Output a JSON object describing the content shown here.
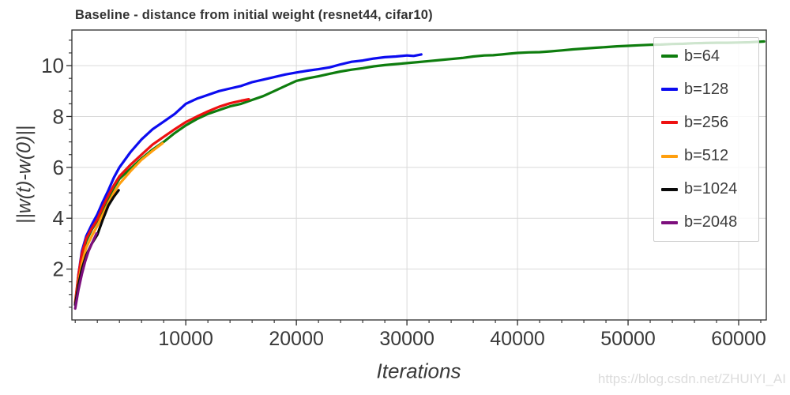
{
  "watermark": {
    "text": "https://blog.csdn.net/ZHUIYI_AI"
  },
  "style": {
    "grid_color": "#d9d9d9",
    "spine_color": "#2b2b2b",
    "tick_color": "#2b2b2b",
    "tick_label_color": "#3a3a3a",
    "title_color": "#333333",
    "legend_border_color": "#cccccc"
  },
  "chart_data": {
    "type": "line",
    "title": "Baseline - distance from initial weight (resnet44, cifar10)",
    "xlabel": "Iterations",
    "ylabel": "||w(t)-w(0)||",
    "xlim": [
      -300,
      62500
    ],
    "ylim": [
      0,
      11.4
    ],
    "grid": true,
    "legend_position": "upper right",
    "x_ticks_major": [
      10000,
      20000,
      30000,
      40000,
      50000,
      60000
    ],
    "x_tick_labels": [
      "10000",
      "20000",
      "30000",
      "40000",
      "50000",
      "60000"
    ],
    "x_minor_step": 2000,
    "y_ticks_major": [
      2,
      4,
      6,
      8,
      10
    ],
    "y_tick_labels": [
      "2",
      "4",
      "6",
      "8",
      "10"
    ],
    "y_minor_step": 0.5,
    "series": [
      {
        "name": "b=64",
        "color": "#0e7d0e",
        "points": [
          [
            0,
            0.6
          ],
          [
            300,
            1.7
          ],
          [
            600,
            2.5
          ],
          [
            1000,
            3.1
          ],
          [
            1500,
            3.55
          ],
          [
            2000,
            3.9
          ],
          [
            2500,
            4.35
          ],
          [
            3000,
            4.8
          ],
          [
            3500,
            5.2
          ],
          [
            4000,
            5.55
          ],
          [
            5000,
            5.95
          ],
          [
            6000,
            6.35
          ],
          [
            7000,
            6.7
          ],
          [
            8000,
            7.0
          ],
          [
            9000,
            7.35
          ],
          [
            10000,
            7.65
          ],
          [
            11000,
            7.9
          ],
          [
            12000,
            8.1
          ],
          [
            13000,
            8.25
          ],
          [
            14000,
            8.4
          ],
          [
            15000,
            8.5
          ],
          [
            16000,
            8.65
          ],
          [
            17000,
            8.8
          ],
          [
            18000,
            9.0
          ],
          [
            19000,
            9.2
          ],
          [
            20000,
            9.4
          ],
          [
            21000,
            9.5
          ],
          [
            22000,
            9.58
          ],
          [
            23000,
            9.68
          ],
          [
            24000,
            9.77
          ],
          [
            25000,
            9.84
          ],
          [
            26000,
            9.9
          ],
          [
            27000,
            9.97
          ],
          [
            28000,
            10.02
          ],
          [
            29000,
            10.06
          ],
          [
            30000,
            10.1
          ],
          [
            31000,
            10.14
          ],
          [
            32000,
            10.18
          ],
          [
            33000,
            10.22
          ],
          [
            34000,
            10.26
          ],
          [
            35000,
            10.3
          ],
          [
            36000,
            10.36
          ],
          [
            37000,
            10.4
          ],
          [
            37800,
            10.41
          ],
          [
            38600,
            10.44
          ],
          [
            39300,
            10.47
          ],
          [
            40000,
            10.5
          ],
          [
            41000,
            10.52
          ],
          [
            42000,
            10.53
          ],
          [
            43000,
            10.56
          ],
          [
            44000,
            10.6
          ],
          [
            45000,
            10.64
          ],
          [
            46000,
            10.67
          ],
          [
            47000,
            10.7
          ],
          [
            48000,
            10.73
          ],
          [
            49000,
            10.76
          ],
          [
            50000,
            10.78
          ],
          [
            51000,
            10.8
          ],
          [
            52000,
            10.82
          ],
          [
            53000,
            10.83
          ],
          [
            54000,
            10.85
          ],
          [
            55000,
            10.86
          ],
          [
            56000,
            10.88
          ],
          [
            57000,
            10.89
          ],
          [
            58000,
            10.9
          ],
          [
            59000,
            10.9
          ],
          [
            60000,
            10.91
          ],
          [
            61000,
            10.92
          ],
          [
            62300,
            10.95
          ]
        ]
      },
      {
        "name": "b=128",
        "color": "#0c0cf0",
        "points": [
          [
            0,
            0.6
          ],
          [
            300,
            1.8
          ],
          [
            600,
            2.7
          ],
          [
            1000,
            3.3
          ],
          [
            1500,
            3.75
          ],
          [
            2000,
            4.15
          ],
          [
            2500,
            4.65
          ],
          [
            3000,
            5.1
          ],
          [
            3500,
            5.6
          ],
          [
            4000,
            6.0
          ],
          [
            5000,
            6.6
          ],
          [
            6000,
            7.1
          ],
          [
            7000,
            7.5
          ],
          [
            8000,
            7.8
          ],
          [
            9000,
            8.1
          ],
          [
            10000,
            8.5
          ],
          [
            11000,
            8.7
          ],
          [
            12000,
            8.85
          ],
          [
            13000,
            9.0
          ],
          [
            14000,
            9.1
          ],
          [
            15000,
            9.2
          ],
          [
            16000,
            9.35
          ],
          [
            17000,
            9.45
          ],
          [
            18000,
            9.55
          ],
          [
            19000,
            9.65
          ],
          [
            20000,
            9.73
          ],
          [
            21000,
            9.8
          ],
          [
            22000,
            9.86
          ],
          [
            23000,
            9.93
          ],
          [
            24000,
            10.05
          ],
          [
            25000,
            10.15
          ],
          [
            26000,
            10.2
          ],
          [
            27000,
            10.28
          ],
          [
            28000,
            10.33
          ],
          [
            29000,
            10.36
          ],
          [
            30000,
            10.4
          ],
          [
            30600,
            10.38
          ],
          [
            31300,
            10.44
          ]
        ]
      },
      {
        "name": "b=256",
        "color": "#ee1111",
        "points": [
          [
            0,
            0.7
          ],
          [
            300,
            1.8
          ],
          [
            600,
            2.6
          ],
          [
            1000,
            3.2
          ],
          [
            1500,
            3.6
          ],
          [
            2000,
            3.95
          ],
          [
            2500,
            4.45
          ],
          [
            3000,
            4.9
          ],
          [
            3500,
            5.3
          ],
          [
            4000,
            5.65
          ],
          [
            5000,
            6.1
          ],
          [
            6000,
            6.5
          ],
          [
            7000,
            6.9
          ],
          [
            8000,
            7.2
          ],
          [
            9000,
            7.5
          ],
          [
            10000,
            7.78
          ],
          [
            11000,
            8.0
          ],
          [
            12000,
            8.2
          ],
          [
            13000,
            8.38
          ],
          [
            14000,
            8.52
          ],
          [
            15000,
            8.62
          ],
          [
            15700,
            8.68
          ]
        ]
      },
      {
        "name": "b=512",
        "color": "#ff9f0e",
        "points": [
          [
            0,
            0.6
          ],
          [
            300,
            1.5
          ],
          [
            600,
            2.2
          ],
          [
            1000,
            2.85
          ],
          [
            1500,
            3.3
          ],
          [
            2000,
            3.7
          ],
          [
            2500,
            4.15
          ],
          [
            3000,
            4.6
          ],
          [
            3500,
            5.0
          ],
          [
            4000,
            5.35
          ],
          [
            5000,
            5.85
          ],
          [
            6000,
            6.3
          ],
          [
            7000,
            6.65
          ],
          [
            7900,
            6.95
          ]
        ]
      },
      {
        "name": "b=1024",
        "color": "#0a0a0a",
        "points": [
          [
            0,
            0.6
          ],
          [
            300,
            1.4
          ],
          [
            600,
            2.0
          ],
          [
            1000,
            2.55
          ],
          [
            1500,
            3.0
          ],
          [
            2000,
            3.35
          ],
          [
            2500,
            3.95
          ],
          [
            3000,
            4.5
          ],
          [
            3500,
            4.85
          ],
          [
            3930,
            5.1
          ]
        ]
      },
      {
        "name": "b=2048",
        "color": "#7d0f7d",
        "points": [
          [
            0,
            0.45
          ],
          [
            300,
            1.2
          ],
          [
            600,
            1.8
          ],
          [
            900,
            2.3
          ],
          [
            1200,
            2.7
          ],
          [
            1500,
            3.0
          ],
          [
            1930,
            3.4
          ]
        ]
      }
    ]
  }
}
